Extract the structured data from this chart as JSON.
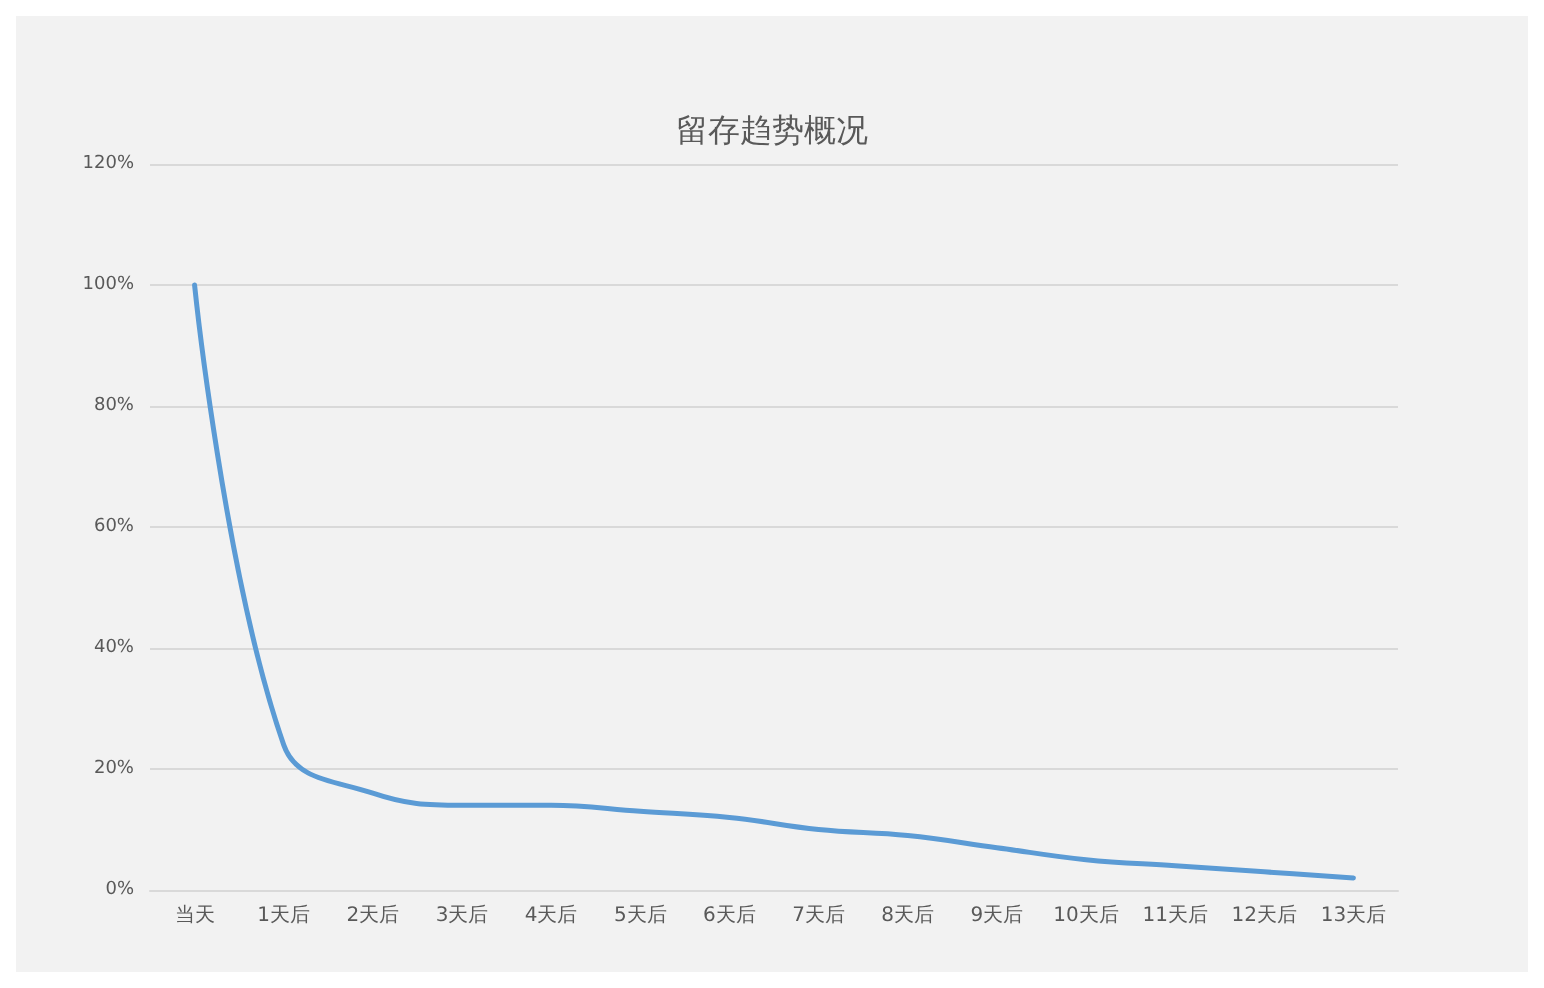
{
  "chart_data": {
    "type": "line",
    "title": "留存趋势概况",
    "categories": [
      "当天",
      "1天后",
      "2天后",
      "3天后",
      "4天后",
      "5天后",
      "6天后",
      "7天后",
      "8天后",
      "9天后",
      "10天后",
      "11天后",
      "12天后",
      "13天后"
    ],
    "series": [
      {
        "color": "#5b9bd5",
        "values": [
          100,
          24,
          16,
          14,
          14,
          13,
          12,
          10,
          9,
          7,
          5,
          4,
          3,
          2
        ]
      }
    ],
    "ylim": [
      0,
      120
    ],
    "yticks": [
      {
        "value": 0,
        "label": "0%"
      },
      {
        "value": 20,
        "label": "20%"
      },
      {
        "value": 40,
        "label": "40%"
      },
      {
        "value": 60,
        "label": "60%"
      },
      {
        "value": 80,
        "label": "80%"
      },
      {
        "value": 100,
        "label": "100%"
      },
      {
        "value": 120,
        "label": "120%"
      }
    ],
    "grid": "y",
    "marker": "none",
    "line_style": "solid"
  }
}
